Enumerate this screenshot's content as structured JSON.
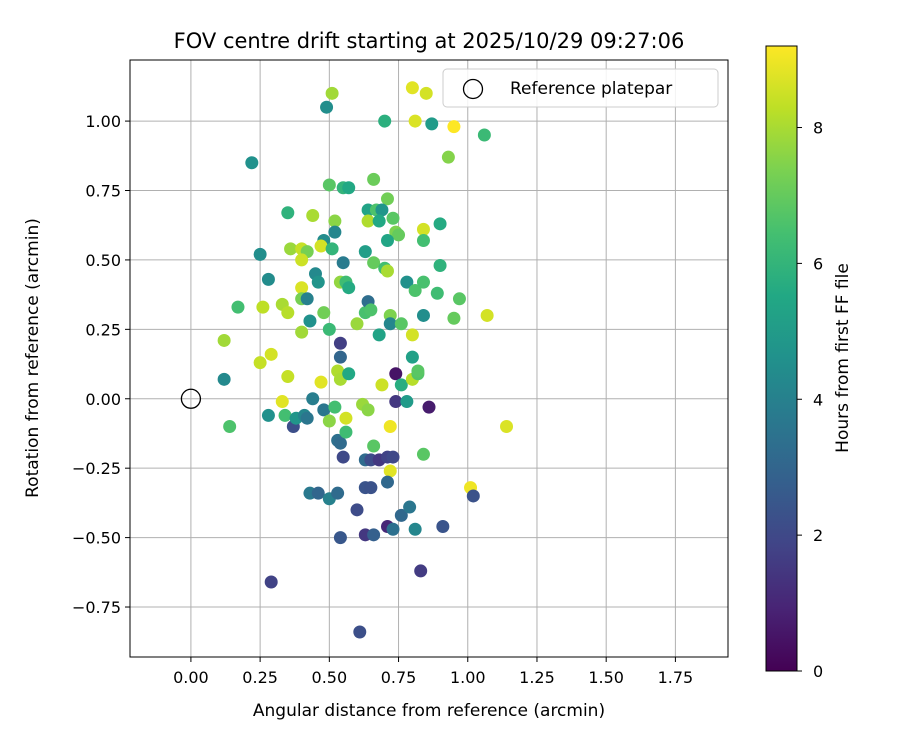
{
  "chart_data": {
    "type": "scatter",
    "title": "FOV centre drift starting at 2025/10/29 09:27:06",
    "xlabel": "Angular distance from reference (arcmin)",
    "ylabel": "Rotation from reference (arcmin)",
    "xlim": [
      -0.22,
      1.94
    ],
    "ylim": [
      -0.93,
      1.22
    ],
    "xticks": [
      "0.00",
      "0.25",
      "0.50",
      "0.75",
      "1.00",
      "1.25",
      "1.50",
      "1.75"
    ],
    "yticks": [
      "−0.75",
      "−0.50",
      "−0.25",
      "0.00",
      "0.25",
      "0.50",
      "0.75",
      "1.00"
    ],
    "grid": true,
    "legend": {
      "label": "Reference platepar",
      "position": "top-right"
    },
    "reference_point": {
      "x": 0.0,
      "y": 0.0
    },
    "colorbar": {
      "label": "Hours from first FF file",
      "colormap": "viridis",
      "range": [
        0,
        9.2
      ],
      "ticks": [
        "0",
        "2",
        "4",
        "6",
        "8"
      ]
    },
    "points": [
      {
        "x": 0.51,
        "y": 1.1,
        "t": 7.9
      },
      {
        "x": 0.49,
        "y": 1.05,
        "t": 4.5
      },
      {
        "x": 0.8,
        "y": 1.12,
        "t": 8.8
      },
      {
        "x": 0.85,
        "y": 1.1,
        "t": 8.6
      },
      {
        "x": 0.7,
        "y": 1.0,
        "t": 5.8
      },
      {
        "x": 0.81,
        "y": 1.0,
        "t": 8.7
      },
      {
        "x": 0.87,
        "y": 0.99,
        "t": 5.0
      },
      {
        "x": 0.95,
        "y": 0.98,
        "t": 9.2
      },
      {
        "x": 1.06,
        "y": 0.95,
        "t": 6.2
      },
      {
        "x": 0.93,
        "y": 0.87,
        "t": 7.5
      },
      {
        "x": 0.22,
        "y": 0.85,
        "t": 4.6
      },
      {
        "x": 0.5,
        "y": 0.77,
        "t": 6.8
      },
      {
        "x": 0.55,
        "y": 0.76,
        "t": 6.0
      },
      {
        "x": 0.57,
        "y": 0.76,
        "t": 5.5
      },
      {
        "x": 0.66,
        "y": 0.79,
        "t": 7.1
      },
      {
        "x": 0.71,
        "y": 0.72,
        "t": 7.2
      },
      {
        "x": 0.35,
        "y": 0.67,
        "t": 5.9
      },
      {
        "x": 0.44,
        "y": 0.66,
        "t": 8.0
      },
      {
        "x": 0.52,
        "y": 0.64,
        "t": 7.6
      },
      {
        "x": 0.64,
        "y": 0.68,
        "t": 5.3
      },
      {
        "x": 0.67,
        "y": 0.68,
        "t": 6.6
      },
      {
        "x": 0.69,
        "y": 0.68,
        "t": 4.8
      },
      {
        "x": 0.64,
        "y": 0.64,
        "t": 8.1
      },
      {
        "x": 0.68,
        "y": 0.64,
        "t": 5.5
      },
      {
        "x": 0.73,
        "y": 0.65,
        "t": 6.8
      },
      {
        "x": 0.74,
        "y": 0.6,
        "t": 7.4
      },
      {
        "x": 0.75,
        "y": 0.59,
        "t": 7.0
      },
      {
        "x": 0.84,
        "y": 0.61,
        "t": 8.6
      },
      {
        "x": 0.9,
        "y": 0.63,
        "t": 5.6
      },
      {
        "x": 0.52,
        "y": 0.6,
        "t": 4.2
      },
      {
        "x": 0.48,
        "y": 0.57,
        "t": 4.4
      },
      {
        "x": 0.71,
        "y": 0.57,
        "t": 5.4
      },
      {
        "x": 0.84,
        "y": 0.57,
        "t": 6.4
      },
      {
        "x": 0.25,
        "y": 0.52,
        "t": 4.5
      },
      {
        "x": 0.36,
        "y": 0.54,
        "t": 7.8
      },
      {
        "x": 0.4,
        "y": 0.54,
        "t": 8.4
      },
      {
        "x": 0.42,
        "y": 0.53,
        "t": 7.3
      },
      {
        "x": 0.47,
        "y": 0.55,
        "t": 8.6
      },
      {
        "x": 0.51,
        "y": 0.54,
        "t": 6.0
      },
      {
        "x": 0.63,
        "y": 0.53,
        "t": 5.1
      },
      {
        "x": 0.4,
        "y": 0.5,
        "t": 8.5
      },
      {
        "x": 0.55,
        "y": 0.49,
        "t": 3.8
      },
      {
        "x": 0.66,
        "y": 0.49,
        "t": 7.0
      },
      {
        "x": 0.7,
        "y": 0.47,
        "t": 6.4
      },
      {
        "x": 0.71,
        "y": 0.46,
        "t": 8.0
      },
      {
        "x": 0.9,
        "y": 0.48,
        "t": 5.9
      },
      {
        "x": 0.45,
        "y": 0.45,
        "t": 4.3
      },
      {
        "x": 0.28,
        "y": 0.43,
        "t": 4.4
      },
      {
        "x": 0.4,
        "y": 0.4,
        "t": 8.7
      },
      {
        "x": 0.46,
        "y": 0.42,
        "t": 4.7
      },
      {
        "x": 0.54,
        "y": 0.42,
        "t": 7.7
      },
      {
        "x": 0.56,
        "y": 0.42,
        "t": 6.3
      },
      {
        "x": 0.57,
        "y": 0.4,
        "t": 5.6
      },
      {
        "x": 0.78,
        "y": 0.42,
        "t": 4.6
      },
      {
        "x": 0.81,
        "y": 0.39,
        "t": 6.6
      },
      {
        "x": 0.84,
        "y": 0.42,
        "t": 6.5
      },
      {
        "x": 0.89,
        "y": 0.38,
        "t": 6.3
      },
      {
        "x": 0.97,
        "y": 0.36,
        "t": 6.8
      },
      {
        "x": 0.17,
        "y": 0.33,
        "t": 6.4
      },
      {
        "x": 0.26,
        "y": 0.33,
        "t": 8.3
      },
      {
        "x": 0.33,
        "y": 0.34,
        "t": 8.0
      },
      {
        "x": 0.35,
        "y": 0.31,
        "t": 8.2
      },
      {
        "x": 0.4,
        "y": 0.36,
        "t": 7.3
      },
      {
        "x": 0.42,
        "y": 0.36,
        "t": 4.0
      },
      {
        "x": 0.48,
        "y": 0.31,
        "t": 7.2
      },
      {
        "x": 0.63,
        "y": 0.31,
        "t": 6.5
      },
      {
        "x": 0.64,
        "y": 0.35,
        "t": 3.3
      },
      {
        "x": 0.65,
        "y": 0.32,
        "t": 6.6
      },
      {
        "x": 0.72,
        "y": 0.3,
        "t": 7.4
      },
      {
        "x": 0.72,
        "y": 0.27,
        "t": 4.2
      },
      {
        "x": 0.76,
        "y": 0.27,
        "t": 6.8
      },
      {
        "x": 0.84,
        "y": 0.3,
        "t": 4.5
      },
      {
        "x": 0.95,
        "y": 0.29,
        "t": 7.0
      },
      {
        "x": 1.07,
        "y": 0.3,
        "t": 8.6
      },
      {
        "x": 0.43,
        "y": 0.28,
        "t": 4.6
      },
      {
        "x": 0.4,
        "y": 0.24,
        "t": 7.9
      },
      {
        "x": 0.5,
        "y": 0.25,
        "t": 6.2
      },
      {
        "x": 0.6,
        "y": 0.27,
        "t": 7.8
      },
      {
        "x": 0.68,
        "y": 0.23,
        "t": 5.3
      },
      {
        "x": 0.8,
        "y": 0.23,
        "t": 8.6
      },
      {
        "x": 0.12,
        "y": 0.21,
        "t": 7.9
      },
      {
        "x": 0.29,
        "y": 0.16,
        "t": 8.6
      },
      {
        "x": 0.25,
        "y": 0.13,
        "t": 8.4
      },
      {
        "x": 0.54,
        "y": 0.2,
        "t": 1.7
      },
      {
        "x": 0.54,
        "y": 0.15,
        "t": 3.0
      },
      {
        "x": 0.8,
        "y": 0.15,
        "t": 5.2
      },
      {
        "x": 0.12,
        "y": 0.07,
        "t": 4.3
      },
      {
        "x": 0.35,
        "y": 0.08,
        "t": 8.4
      },
      {
        "x": 0.47,
        "y": 0.06,
        "t": 8.8
      },
      {
        "x": 0.53,
        "y": 0.1,
        "t": 8.1
      },
      {
        "x": 0.54,
        "y": 0.07,
        "t": 8.0
      },
      {
        "x": 0.57,
        "y": 0.09,
        "t": 5.5
      },
      {
        "x": 0.69,
        "y": 0.05,
        "t": 8.5
      },
      {
        "x": 0.74,
        "y": 0.09,
        "t": 0.5
      },
      {
        "x": 0.76,
        "y": 0.05,
        "t": 5.7
      },
      {
        "x": 0.8,
        "y": 0.07,
        "t": 8.2
      },
      {
        "x": 0.82,
        "y": 0.09,
        "t": 6.7
      },
      {
        "x": 0.82,
        "y": 0.1,
        "t": 6.8
      },
      {
        "x": 0.14,
        "y": -0.1,
        "t": 6.6
      },
      {
        "x": 0.28,
        "y": -0.06,
        "t": 4.6
      },
      {
        "x": 0.33,
        "y": -0.01,
        "t": 8.8
      },
      {
        "x": 0.34,
        "y": -0.06,
        "t": 6.4
      },
      {
        "x": 0.37,
        "y": -0.1,
        "t": 2.2
      },
      {
        "x": 0.38,
        "y": -0.07,
        "t": 4.8
      },
      {
        "x": 0.41,
        "y": -0.06,
        "t": 4.2
      },
      {
        "x": 0.42,
        "y": -0.07,
        "t": 3.6
      },
      {
        "x": 0.44,
        "y": 0.0,
        "t": 3.9
      },
      {
        "x": 0.48,
        "y": -0.04,
        "t": 3.6
      },
      {
        "x": 0.5,
        "y": -0.08,
        "t": 7.6
      },
      {
        "x": 0.52,
        "y": -0.03,
        "t": 6.4
      },
      {
        "x": 0.53,
        "y": -0.15,
        "t": 3.4
      },
      {
        "x": 0.54,
        "y": -0.16,
        "t": 3.2
      },
      {
        "x": 0.56,
        "y": -0.12,
        "t": 6.3
      },
      {
        "x": 0.56,
        "y": -0.07,
        "t": 8.6
      },
      {
        "x": 0.62,
        "y": -0.02,
        "t": 7.8
      },
      {
        "x": 0.64,
        "y": -0.04,
        "t": 7.6
      },
      {
        "x": 0.66,
        "y": -0.17,
        "t": 6.8
      },
      {
        "x": 0.72,
        "y": -0.1,
        "t": 9.0
      },
      {
        "x": 0.74,
        "y": -0.01,
        "t": 1.5
      },
      {
        "x": 0.78,
        "y": -0.01,
        "t": 5.0
      },
      {
        "x": 0.84,
        "y": -0.2,
        "t": 6.8
      },
      {
        "x": 0.86,
        "y": -0.03,
        "t": 0.7
      },
      {
        "x": 1.14,
        "y": -0.1,
        "t": 8.7
      },
      {
        "x": 0.55,
        "y": -0.21,
        "t": 2.0
      },
      {
        "x": 0.63,
        "y": -0.22,
        "t": 3.2
      },
      {
        "x": 0.65,
        "y": -0.22,
        "t": 2.1
      },
      {
        "x": 0.68,
        "y": -0.22,
        "t": 1.5
      },
      {
        "x": 0.71,
        "y": -0.21,
        "t": 1.8
      },
      {
        "x": 0.73,
        "y": -0.21,
        "t": 2.0
      },
      {
        "x": 0.72,
        "y": -0.26,
        "t": 8.8
      },
      {
        "x": 0.43,
        "y": -0.34,
        "t": 3.7
      },
      {
        "x": 0.46,
        "y": -0.34,
        "t": 3.0
      },
      {
        "x": 0.5,
        "y": -0.36,
        "t": 4.0
      },
      {
        "x": 0.53,
        "y": -0.34,
        "t": 3.2
      },
      {
        "x": 0.63,
        "y": -0.32,
        "t": 2.4
      },
      {
        "x": 0.65,
        "y": -0.32,
        "t": 2.3
      },
      {
        "x": 0.71,
        "y": -0.3,
        "t": 3.1
      },
      {
        "x": 1.01,
        "y": -0.32,
        "t": 9.0
      },
      {
        "x": 1.02,
        "y": -0.35,
        "t": 2.3
      },
      {
        "x": 0.6,
        "y": -0.4,
        "t": 2.1
      },
      {
        "x": 0.63,
        "y": -0.49,
        "t": 1.5
      },
      {
        "x": 0.66,
        "y": -0.49,
        "t": 2.8
      },
      {
        "x": 0.71,
        "y": -0.46,
        "t": 1.0
      },
      {
        "x": 0.73,
        "y": -0.47,
        "t": 3.4
      },
      {
        "x": 0.76,
        "y": -0.42,
        "t": 3.1
      },
      {
        "x": 0.79,
        "y": -0.39,
        "t": 3.6
      },
      {
        "x": 0.81,
        "y": -0.47,
        "t": 4.2
      },
      {
        "x": 0.91,
        "y": -0.46,
        "t": 2.4
      },
      {
        "x": 0.54,
        "y": -0.5,
        "t": 2.5
      },
      {
        "x": 0.83,
        "y": -0.62,
        "t": 1.6
      },
      {
        "x": 0.29,
        "y": -0.66,
        "t": 1.8
      },
      {
        "x": 0.61,
        "y": -0.84,
        "t": 2.2
      }
    ]
  }
}
